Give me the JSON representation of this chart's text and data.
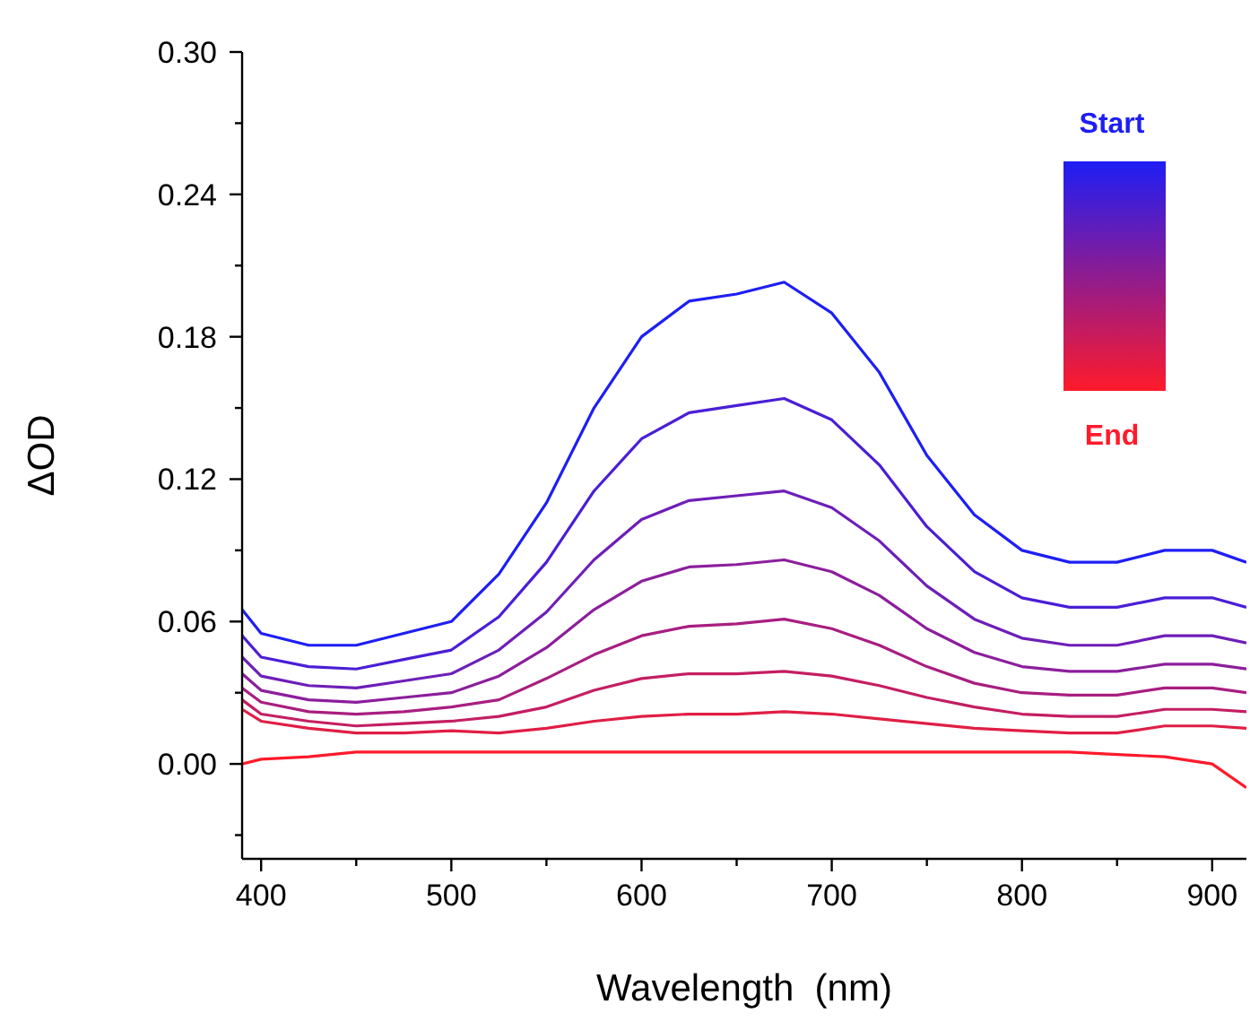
{
  "chart_data": {
    "type": "line",
    "xlabel": "Wavelength  (nm)",
    "ylabel": "ΔOD",
    "x": [
      390,
      400,
      425,
      450,
      475,
      500,
      525,
      550,
      575,
      600,
      625,
      650,
      675,
      700,
      725,
      750,
      775,
      800,
      825,
      850,
      875,
      900,
      918
    ],
    "xlim": [
      390,
      918
    ],
    "xticks": [
      400,
      {
        "value": 450,
        "label": null
      },
      500,
      {
        "value": 550,
        "label": null
      },
      600,
      {
        "value": 650,
        "label": null
      },
      700,
      {
        "value": 750,
        "label": null
      },
      800,
      {
        "value": 850,
        "label": null
      },
      900
    ],
    "ylim": [
      -0.04,
      0.3
    ],
    "yticks": [
      {
        "value": -0.03,
        "label": null
      },
      {
        "value": 0,
        "label": "0.00"
      },
      {
        "value": 0.03,
        "label": null
      },
      {
        "value": 0.06,
        "label": "0.06"
      },
      {
        "value": 0.09,
        "label": null
      },
      {
        "value": 0.12,
        "label": "0.12"
      },
      {
        "value": 0.15,
        "label": null
      },
      {
        "value": 0.18,
        "label": "0.18"
      },
      {
        "value": 0.21,
        "label": null
      },
      {
        "value": 0.24,
        "label": "0.24"
      },
      {
        "value": 0.27,
        "label": null
      },
      {
        "value": 0.3,
        "label": "0.30"
      }
    ],
    "grid": false,
    "marker": "none",
    "line_style": "solid",
    "annotations": [
      "Start",
      "End"
    ],
    "series": [
      {
        "color": "#1e1ef5",
        "values": [
          0.065,
          0.055,
          0.05,
          0.05,
          0.055,
          0.06,
          0.08,
          0.11,
          0.15,
          0.18,
          0.195,
          0.198,
          0.203,
          0.19,
          0.165,
          0.13,
          0.105,
          0.09,
          0.085,
          0.085,
          0.09,
          0.09,
          0.085
        ]
      },
      {
        "color": "#4a1ed6",
        "values": [
          0.054,
          0.045,
          0.041,
          0.04,
          0.044,
          0.048,
          0.062,
          0.085,
          0.115,
          0.137,
          0.148,
          0.151,
          0.154,
          0.145,
          0.126,
          0.1,
          0.081,
          0.07,
          0.066,
          0.066,
          0.07,
          0.07,
          0.066
        ]
      },
      {
        "color": "#6e1eb8",
        "values": [
          0.045,
          0.037,
          0.033,
          0.032,
          0.035,
          0.038,
          0.048,
          0.064,
          0.086,
          0.103,
          0.111,
          0.113,
          0.115,
          0.108,
          0.094,
          0.075,
          0.061,
          0.053,
          0.05,
          0.05,
          0.054,
          0.054,
          0.051
        ]
      },
      {
        "color": "#8c1e9c",
        "values": [
          0.038,
          0.031,
          0.027,
          0.026,
          0.028,
          0.03,
          0.037,
          0.049,
          0.065,
          0.077,
          0.083,
          0.084,
          0.086,
          0.081,
          0.071,
          0.057,
          0.047,
          0.041,
          0.039,
          0.039,
          0.042,
          0.042,
          0.04
        ]
      },
      {
        "color": "#a81e80",
        "values": [
          0.032,
          0.026,
          0.022,
          0.021,
          0.022,
          0.024,
          0.027,
          0.036,
          0.046,
          0.054,
          0.058,
          0.059,
          0.061,
          0.057,
          0.05,
          0.041,
          0.034,
          0.03,
          0.029,
          0.029,
          0.032,
          0.032,
          0.03
        ]
      },
      {
        "color": "#c41e62",
        "values": [
          0.027,
          0.021,
          0.018,
          0.016,
          0.017,
          0.018,
          0.02,
          0.024,
          0.031,
          0.036,
          0.038,
          0.038,
          0.039,
          0.037,
          0.033,
          0.028,
          0.024,
          0.021,
          0.02,
          0.02,
          0.023,
          0.023,
          0.022
        ]
      },
      {
        "color": "#e01e45",
        "values": [
          0.023,
          0.018,
          0.015,
          0.013,
          0.013,
          0.014,
          0.013,
          0.015,
          0.018,
          0.02,
          0.021,
          0.021,
          0.022,
          0.021,
          0.019,
          0.017,
          0.015,
          0.014,
          0.013,
          0.013,
          0.016,
          0.016,
          0.015
        ]
      },
      {
        "color": "#ff1a2a",
        "values": [
          0.0,
          0.002,
          0.003,
          0.005,
          0.005,
          0.005,
          0.005,
          0.005,
          0.005,
          0.005,
          0.005,
          0.005,
          0.005,
          0.005,
          0.005,
          0.005,
          0.005,
          0.005,
          0.005,
          0.004,
          0.003,
          0.0,
          -0.01
        ]
      }
    ]
  }
}
